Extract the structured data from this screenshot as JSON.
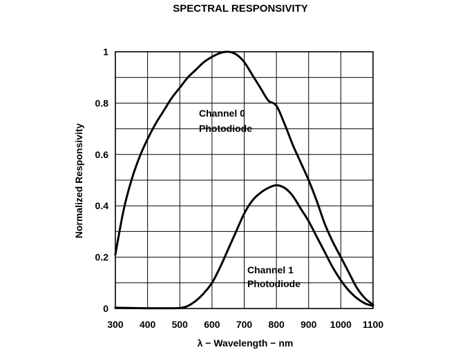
{
  "chart_data": {
    "type": "line",
    "title": "SPECTRAL RESPONSIVITY",
    "xlabel": "λ − Wavelength − nm",
    "ylabel": "Normalized Responsivity",
    "xlim": [
      300,
      1100
    ],
    "ylim": [
      0,
      1
    ],
    "x_ticks": [
      "300",
      "400",
      "500",
      "600",
      "700",
      "800",
      "900",
      "1000",
      "1100"
    ],
    "y_ticks": [
      "0",
      "0.2",
      "0.4",
      "0.6",
      "0.8",
      "1"
    ],
    "grid": true,
    "series": [
      {
        "name": "Channel 0 Photodiode",
        "label_lines": [
          "Channel 0",
          "Photodiode"
        ],
        "x": [
          300,
          325,
          350,
          375,
          400,
          425,
          450,
          475,
          500,
          525,
          550,
          575,
          600,
          625,
          650,
          675,
          700,
          725,
          750,
          775,
          800,
          825,
          850,
          875,
          900,
          925,
          950,
          975,
          1000,
          1025,
          1050,
          1075,
          1100
        ],
        "y": [
          0.21,
          0.38,
          0.5,
          0.59,
          0.66,
          0.72,
          0.77,
          0.82,
          0.86,
          0.9,
          0.93,
          0.96,
          0.98,
          0.995,
          1.0,
          0.99,
          0.96,
          0.91,
          0.86,
          0.81,
          0.79,
          0.72,
          0.64,
          0.57,
          0.5,
          0.42,
          0.33,
          0.26,
          0.2,
          0.14,
          0.08,
          0.04,
          0.015
        ]
      },
      {
        "name": "Channel 1 Photodiode",
        "label_lines": [
          "Channel 1",
          "Photodiode"
        ],
        "x": [
          300,
          350,
          400,
          450,
          475,
          500,
          510,
          525,
          550,
          575,
          600,
          625,
          650,
          675,
          700,
          725,
          750,
          775,
          800,
          825,
          850,
          875,
          900,
          925,
          950,
          975,
          1000,
          1025,
          1050,
          1075,
          1100
        ],
        "y": [
          0.003,
          0.002,
          0.001,
          0.001,
          0.001,
          0.002,
          0.004,
          0.01,
          0.03,
          0.06,
          0.1,
          0.16,
          0.23,
          0.3,
          0.37,
          0.42,
          0.45,
          0.47,
          0.48,
          0.47,
          0.44,
          0.39,
          0.34,
          0.28,
          0.22,
          0.16,
          0.11,
          0.07,
          0.04,
          0.02,
          0.01
        ]
      }
    ]
  }
}
